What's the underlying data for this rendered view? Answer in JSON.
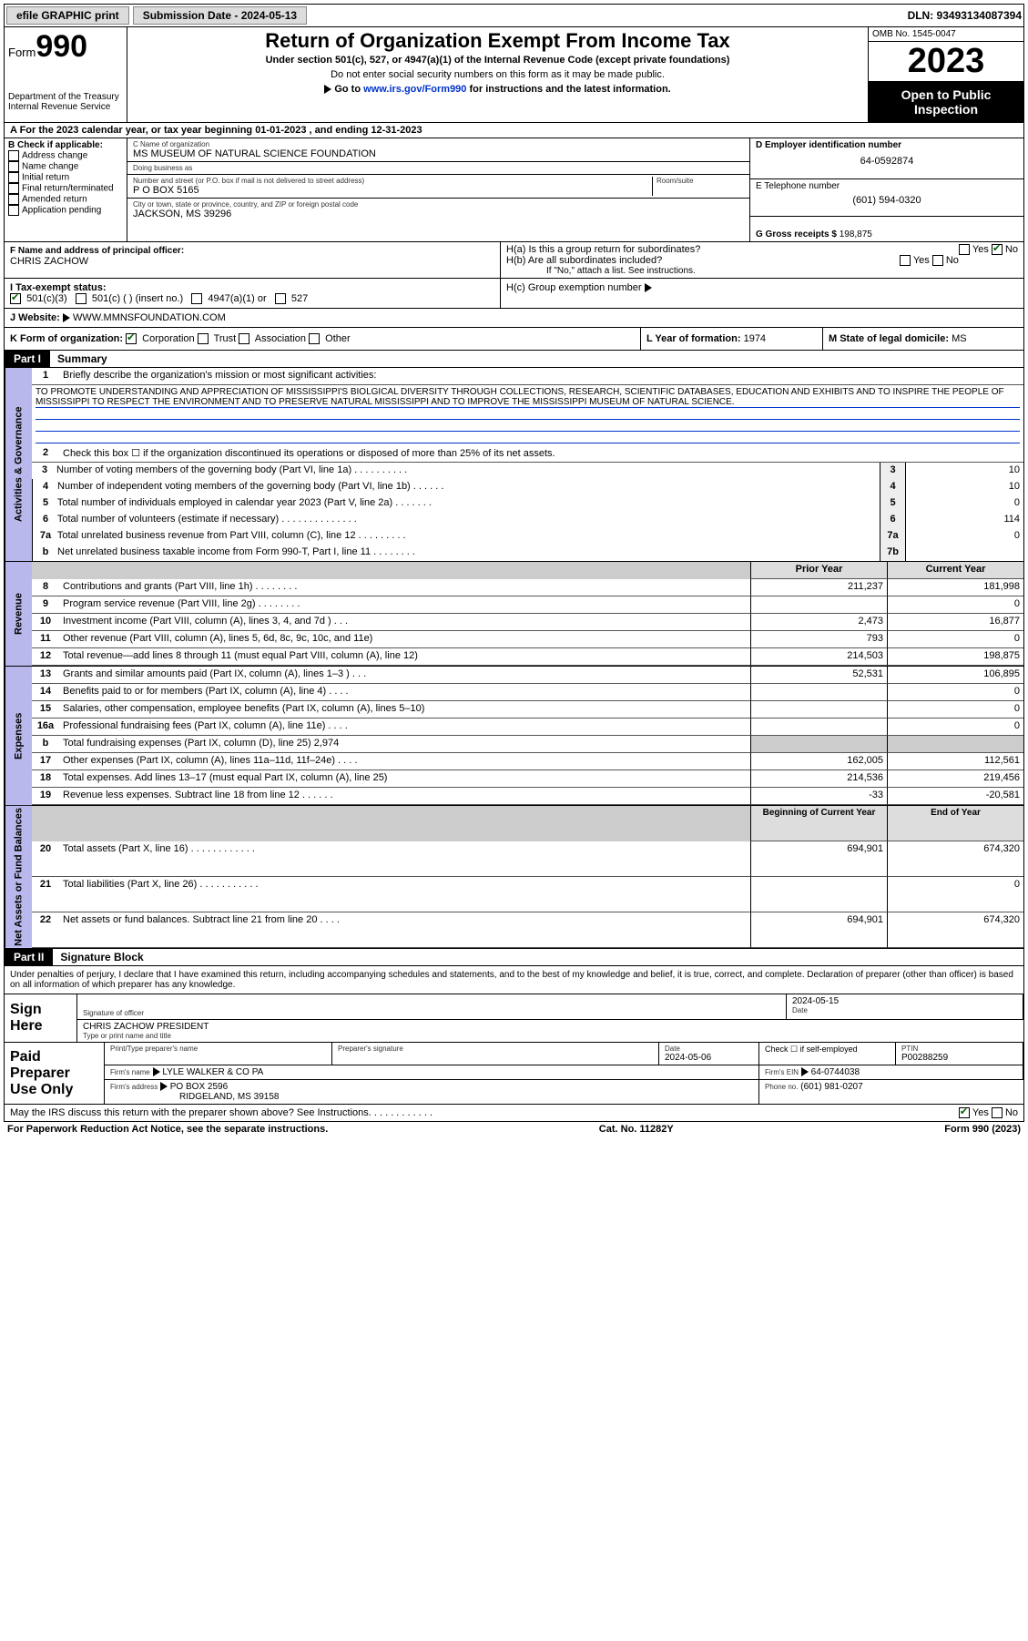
{
  "topbar": {
    "efile": "efile GRAPHIC print",
    "submission_lbl": "Submission Date - 2024-05-13",
    "dln": "DLN: 93493134087394"
  },
  "header": {
    "form_prefix": "Form",
    "form_num": "990",
    "dept": "Department of the Treasury\nInternal Revenue Service",
    "title": "Return of Organization Exempt From Income Tax",
    "sub1": "Under section 501(c), 527, or 4947(a)(1) of the Internal Revenue Code (except private foundations)",
    "sub2": "Do not enter social security numbers on this form as it may be made public.",
    "sub3_pre": "Go to ",
    "sub3_link": "www.irs.gov/Form990",
    "sub3_post": " for instructions and the latest information.",
    "omb": "OMB No. 1545-0047",
    "year": "2023",
    "open": "Open to Public Inspection"
  },
  "rowA": "A   For the 2023 calendar year, or tax year beginning 01-01-2023    , and ending 12-31-2023",
  "B": {
    "lbl": "B Check if applicable:",
    "items": [
      "Address change",
      "Name change",
      "Initial return",
      "Final return/terminated",
      "Amended return",
      "Application pending"
    ]
  },
  "C": {
    "name_lbl": "C Name of organization",
    "name": "MS MUSEUM OF NATURAL SCIENCE FOUNDATION",
    "dba_lbl": "Doing business as",
    "dba": "",
    "addr_lbl": "Number and street (or P.O. box if mail is not delivered to street address)",
    "room_lbl": "Room/suite",
    "addr": "P O BOX 5165",
    "city_lbl": "City or town, state or province, country, and ZIP or foreign postal code",
    "city": "JACKSON, MS  39296"
  },
  "D": {
    "lbl": "D Employer identification number",
    "val": "64-0592874"
  },
  "E": {
    "lbl": "E Telephone number",
    "val": "(601) 594-0320"
  },
  "G": {
    "lbl": "G Gross receipts $",
    "val": "198,875"
  },
  "F": {
    "lbl": "F Name and address of principal officer:",
    "val": "CHRIS ZACHOW"
  },
  "H": {
    "a": "H(a)  Is this a group return for subordinates?",
    "b": "H(b)  Are all subordinates included?",
    "b2": "If \"No,\" attach a list. See instructions.",
    "c": "H(c)  Group exemption number",
    "c_arrow": "▶"
  },
  "I": {
    "lbl": "I    Tax-exempt status:",
    "opts": [
      "501(c)(3)",
      "501(c) (  ) (insert no.)",
      "4947(a)(1) or",
      "527"
    ]
  },
  "J": {
    "lbl": "J    Website:",
    "arrow": "▶",
    "val": "WWW.MMNSFOUNDATION.COM"
  },
  "K": {
    "lbl": "K Form of organization:",
    "opts": [
      "Corporation",
      "Trust",
      "Association",
      "Other"
    ],
    "checked": 0
  },
  "L": {
    "lbl": "L Year of formation:",
    "val": "1974"
  },
  "M": {
    "lbl": "M State of legal domicile:",
    "val": "MS"
  },
  "parts": {
    "p1": "Part I",
    "p1t": "Summary",
    "p2": "Part II",
    "p2t": "Signature Block"
  },
  "sides": {
    "ag": "Activities & Governance",
    "rev": "Revenue",
    "exp": "Expenses",
    "na": "Net Assets or Fund Balances"
  },
  "summary": {
    "l1_lbl": "Briefly describe the organization's mission or most significant activities:",
    "l1_txt": "TO PROMOTE UNDERSTANDING AND APPRECIATION OF MISSISSIPPI'S BIOLGICAL DIVERSITY THROUGH COLLECTIONS, RESEARCH, SCIENTIFIC DATABASES, EDUCATION AND EXHIBITS AND TO INSPIRE THE PEOPLE OF MISSISSIPPI TO RESPECT THE ENVIRONMENT AND TO PRESERVE NATURAL MISSISSIPPI AND TO IMPROVE THE MISSISSIPPI MUSEUM OF NATURAL SCIENCE.",
    "l2": "Check this box ☐  if the organization discontinued its operations or disposed of more than 25% of its net assets.",
    "rows_ag": [
      {
        "n": "3",
        "d": "Number of voting members of the governing body (Part VI, line 1a)  .    .    .    .    .    .    .    .    .    .",
        "ln": "3",
        "v": "10"
      },
      {
        "n": "4",
        "d": "Number of independent voting members of the governing body (Part VI, line 1b)  .    .    .    .    .    .",
        "ln": "4",
        "v": "10"
      },
      {
        "n": "5",
        "d": "Total number of individuals employed in calendar year 2023 (Part V, line 2a)  .    .    .    .    .    .    .",
        "ln": "5",
        "v": "0"
      },
      {
        "n": "6",
        "d": "Total number of volunteers (estimate if necessary)  .    .    .    .    .    .    .    .    .    .    .    .    .    .",
        "ln": "6",
        "v": "114"
      },
      {
        "n": "7a",
        "d": "Total unrelated business revenue from Part VIII, column (C), line 12  .    .    .    .    .    .    .    .    .",
        "ln": "7a",
        "v": "0"
      },
      {
        "n": "b",
        "d": "Net unrelated business taxable income from Form 990-T, Part I, line 11  .    .    .    .    .    .    .    .",
        "ln": "7b",
        "v": ""
      }
    ],
    "hdr_prior": "Prior Year",
    "hdr_curr": "Current Year",
    "rows_rev": [
      {
        "n": "8",
        "d": "Contributions and grants (Part VIII, line 1h)    .    .    .    .    .    .    .    .",
        "p": "211,237",
        "c": "181,998"
      },
      {
        "n": "9",
        "d": "Program service revenue (Part VIII, line 2g)   .    .    .    .    .    .    .    .",
        "p": "",
        "c": "0"
      },
      {
        "n": "10",
        "d": "Investment income (Part VIII, column (A), lines 3, 4, and 7d )   .    .    .",
        "p": "2,473",
        "c": "16,877"
      },
      {
        "n": "11",
        "d": "Other revenue (Part VIII, column (A), lines 5, 6d, 8c, 9c, 10c, and 11e)",
        "p": "793",
        "c": "0"
      },
      {
        "n": "12",
        "d": "Total revenue—add lines 8 through 11 (must equal Part VIII, column (A), line 12)",
        "p": "214,503",
        "c": "198,875"
      }
    ],
    "rows_exp": [
      {
        "n": "13",
        "d": "Grants and similar amounts paid (Part IX, column (A), lines 1–3 )   .    .    .",
        "p": "52,531",
        "c": "106,895"
      },
      {
        "n": "14",
        "d": "Benefits paid to or for members (Part IX, column (A), line 4)   .    .    .    .",
        "p": "",
        "c": "0"
      },
      {
        "n": "15",
        "d": "Salaries, other compensation, employee benefits (Part IX, column (A), lines 5–10)",
        "p": "",
        "c": "0"
      },
      {
        "n": "16a",
        "d": "Professional fundraising fees (Part IX, column (A), line 11e)   .    .    .    .",
        "p": "",
        "c": "0"
      },
      {
        "n": "b",
        "d": "Total fundraising expenses (Part IX, column (D), line 25) 2,974",
        "p": "",
        "c": "",
        "shade": true
      },
      {
        "n": "17",
        "d": "Other expenses (Part IX, column (A), lines 11a–11d, 11f–24e)   .    .    .    .",
        "p": "162,005",
        "c": "112,561"
      },
      {
        "n": "18",
        "d": "Total expenses. Add lines 13–17 (must equal Part IX, column (A), line 25)",
        "p": "214,536",
        "c": "219,456"
      },
      {
        "n": "19",
        "d": "Revenue less expenses. Subtract line 18 from line 12   .    .    .    .    .    .",
        "p": "-33",
        "c": "-20,581"
      }
    ],
    "hdr_boy": "Beginning of Current Year",
    "hdr_eoy": "End of Year",
    "rows_na": [
      {
        "n": "20",
        "d": "Total assets (Part X, line 16)  .    .    .    .    .    .    .    .    .    .    .    .",
        "p": "694,901",
        "c": "674,320"
      },
      {
        "n": "21",
        "d": "Total liabilities (Part X, line 26)  .    .    .    .    .    .    .    .    .    .    .",
        "p": "",
        "c": "0"
      },
      {
        "n": "22",
        "d": "Net assets or fund balances. Subtract line 21 from line 20  .    .    .    .",
        "p": "694,901",
        "c": "674,320"
      }
    ]
  },
  "perjury": "Under penalties of perjury, I declare that I have examined this return, including accompanying schedules and statements, and to the best of my knowledge and belief, it is true, correct, and complete. Declaration of preparer (other than officer) is based on all information of which preparer has any knowledge.",
  "sign": {
    "here": "Sign Here",
    "sig_lbl": "Signature of officer",
    "officer": "CHRIS ZACHOW PRESIDENT",
    "type_lbl": "Type or print name and title",
    "date_lbl": "Date",
    "date": "2024-05-15"
  },
  "paid": {
    "lbl": "Paid Preparer Use Only",
    "name_lbl": "Print/Type preparer's name",
    "sig_lbl": "Preparer's signature",
    "date_lbl": "Date",
    "date": "2024-05-06",
    "self_lbl": "Check ☐ if self-employed",
    "ptin_lbl": "PTIN",
    "ptin": "P00288259",
    "firm_name_lbl": "Firm's name",
    "firm_name": "LYLE WALKER & CO PA",
    "firm_ein_lbl": "Firm's EIN",
    "firm_ein": "64-0744038",
    "firm_addr_lbl": "Firm's address",
    "firm_addr": "PO BOX 2596",
    "firm_city": "RIDGELAND, MS  39158",
    "phone_lbl": "Phone no.",
    "phone": "(601) 981-0207"
  },
  "discuss": "May the IRS discuss this return with the preparer shown above? See Instructions.    .    .    .    .    .    .    .    .    .    .    .",
  "footer": {
    "l": "For Paperwork Reduction Act Notice, see the separate instructions.",
    "c": "Cat. No. 11282Y",
    "r": "Form 990 (2023)"
  },
  "colors": {
    "link": "#0033cc",
    "side": "#b8b8ec",
    "check_green": "#006400"
  }
}
